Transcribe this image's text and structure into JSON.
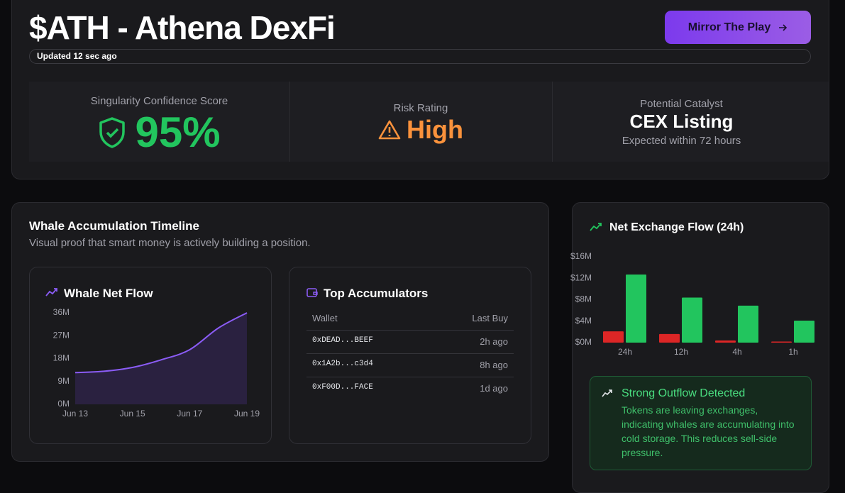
{
  "header": {
    "title": "$ATH - Athena DexFi",
    "button": "Mirror The Play",
    "updated": "Updated 12 sec ago"
  },
  "metrics": [
    {
      "label": "Singularity Confidence Score",
      "value": "95%"
    },
    {
      "label": "Risk Rating",
      "value": "High"
    },
    {
      "label": "Potential Catalyst",
      "value": "CEX Listing",
      "note": "Expected within 72 hours"
    }
  ],
  "timeline": {
    "title": "Whale Accumulation Timeline",
    "subtitle": "Visual proof that smart money is actively building a position.",
    "chart_data": {
      "type": "area",
      "title": "Whale Net Flow",
      "categories": [
        "Jun 13",
        null,
        "Jun 15",
        null,
        "Jun 17",
        null,
        "Jun 19"
      ],
      "values": [
        12.5,
        13,
        14.5,
        17.5,
        21.5,
        30,
        36
      ],
      "color": "#8b5cf6",
      "ylim": [
        0,
        36
      ],
      "yticks": [
        {
          "value": 0,
          "label": "0M"
        },
        {
          "value": 9,
          "label": "9M"
        },
        {
          "value": 18,
          "label": "18M"
        },
        {
          "value": 27,
          "label": "27M"
        },
        {
          "value": 36,
          "label": "36M"
        }
      ]
    },
    "accumulators": {
      "title": "Top Accumulators",
      "columns": [
        "Wallet",
        "Last Buy"
      ],
      "rows": [
        [
          "0xDEAD...BEEF",
          "2h ago"
        ],
        [
          "0x1A2b...c3d4",
          "8h ago"
        ],
        [
          "0xF00D...FACE",
          "1d ago"
        ]
      ]
    }
  },
  "exchange_flow": {
    "chart_data": {
      "type": "bar",
      "title": "Net Exchange Flow (24h)",
      "categories": [
        "24h",
        "12h",
        "4h",
        "1h"
      ],
      "series": [
        {
          "color": "#dc2626",
          "values": [
            2.1,
            1.6,
            0.4,
            0.2
          ]
        },
        {
          "color": "#22c55e",
          "values": [
            12.7,
            8.4,
            6.9,
            4.1
          ]
        }
      ],
      "ylim": [
        0,
        16
      ],
      "yticks": [
        {
          "value": 0,
          "label": "$0M"
        },
        {
          "value": 4,
          "label": "$4M"
        },
        {
          "value": 8,
          "label": "$8M"
        },
        {
          "value": 12,
          "label": "$12M"
        },
        {
          "value": 16,
          "label": "$16M"
        }
      ]
    },
    "alert": {
      "title": "Strong Outflow Detected",
      "text": "Tokens are leaving exchanges, indicating whales are accumulating into cold storage. This reduces sell-side pressure."
    }
  }
}
